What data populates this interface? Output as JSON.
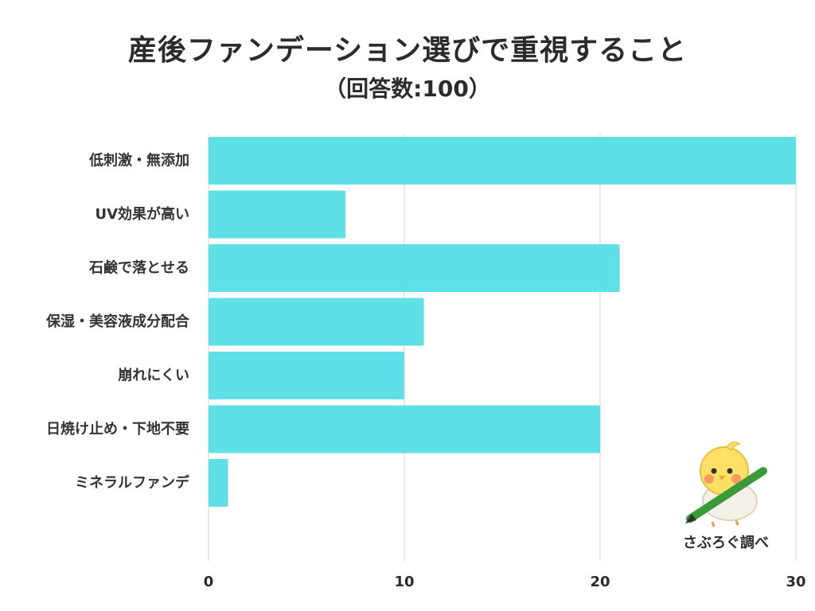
{
  "chart_data": {
    "type": "bar",
    "orientation": "horizontal",
    "title": "産後ファンデーション選びで重視すること",
    "subtitle": "（回答数:100）",
    "categories": [
      "低刺激・無添加",
      "UV効果が高い",
      "石鹸で落とせる",
      "保湿・美容液成分配合",
      "崩れにくい",
      "日焼け止め・下地不要",
      "ミネラルファンデ"
    ],
    "values": [
      30,
      7,
      21,
      11,
      10,
      20,
      1
    ],
    "xlim": [
      0,
      30
    ],
    "xticks": [
      0,
      10,
      20,
      30
    ],
    "grid": true,
    "bar_color": "#5ee0e6",
    "grid_color": "#e2e2e2"
  },
  "credit": {
    "text": "さぶろぐ調べ"
  }
}
